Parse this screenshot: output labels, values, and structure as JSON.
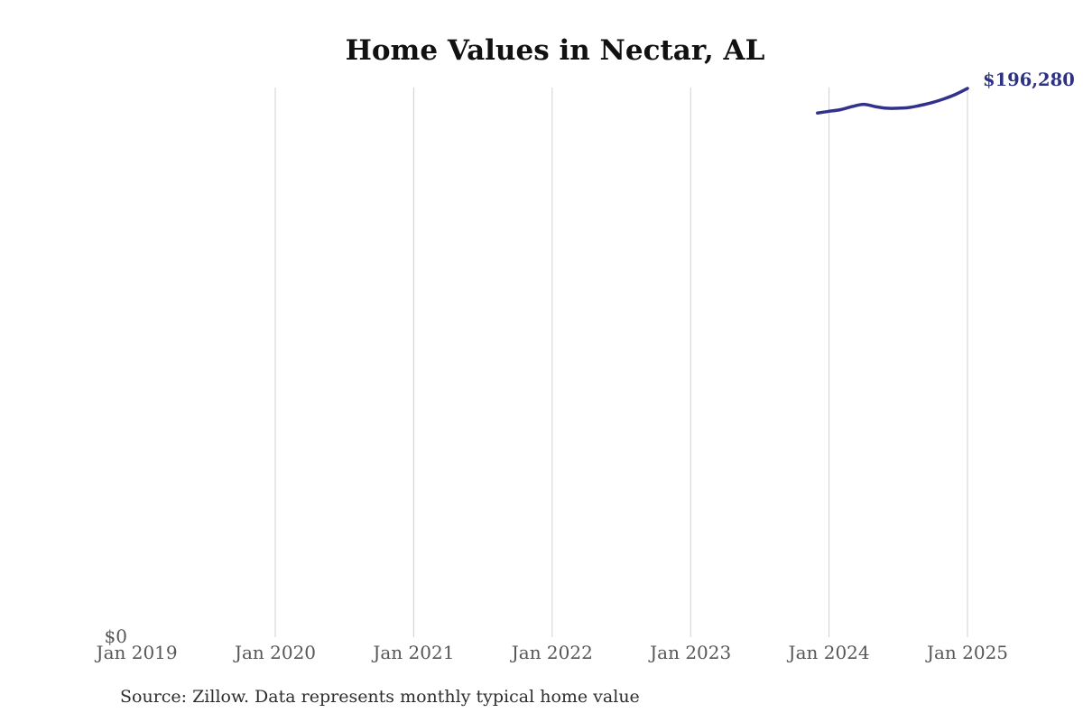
{
  "page": {
    "title": "Home Values in Nectar, AL",
    "source_note": "Source: Zillow. Data represents monthly typical home value"
  },
  "chart_data": {
    "type": "line",
    "title": "Home Values in Nectar, AL",
    "xlabel": "",
    "ylabel": "",
    "ylim": [
      0,
      196280
    ],
    "grid": "vertical",
    "legend": "none",
    "y_ticks": [
      {
        "label": "$0",
        "value": 0
      }
    ],
    "x_ticks": [
      {
        "label": "Jan 2019",
        "month": "2019-01",
        "gridline": false
      },
      {
        "label": "Jan 2020",
        "month": "2020-01",
        "gridline": true
      },
      {
        "label": "Jan 2021",
        "month": "2021-01",
        "gridline": true
      },
      {
        "label": "Jan 2022",
        "month": "2022-01",
        "gridline": true
      },
      {
        "label": "Jan 2023",
        "month": "2023-01",
        "gridline": true
      },
      {
        "label": "Jan 2024",
        "month": "2024-01",
        "gridline": true
      },
      {
        "label": "Jan 2025",
        "month": "2025-01",
        "gridline": true
      }
    ],
    "series": [
      {
        "name": "Monthly typical home value",
        "color": "#32328c",
        "x": [
          "2023-12",
          "2024-01",
          "2024-02",
          "2024-03",
          "2024-04",
          "2024-05",
          "2024-06",
          "2024-07",
          "2024-08",
          "2024-09",
          "2024-10",
          "2024-11",
          "2024-12",
          "2025-01"
        ],
        "values": [
          187500,
          188100,
          188700,
          189800,
          190600,
          189800,
          189200,
          189200,
          189500,
          190300,
          191300,
          192600,
          194200,
          196280
        ]
      }
    ],
    "end_label": {
      "text": "$196,280",
      "color": "#2d3282"
    },
    "colors": {
      "gridline": "#d0d0d0",
      "tick_label": "#575757",
      "title": "#111111",
      "source": "#2e2e2e",
      "background": "#ffffff"
    }
  }
}
